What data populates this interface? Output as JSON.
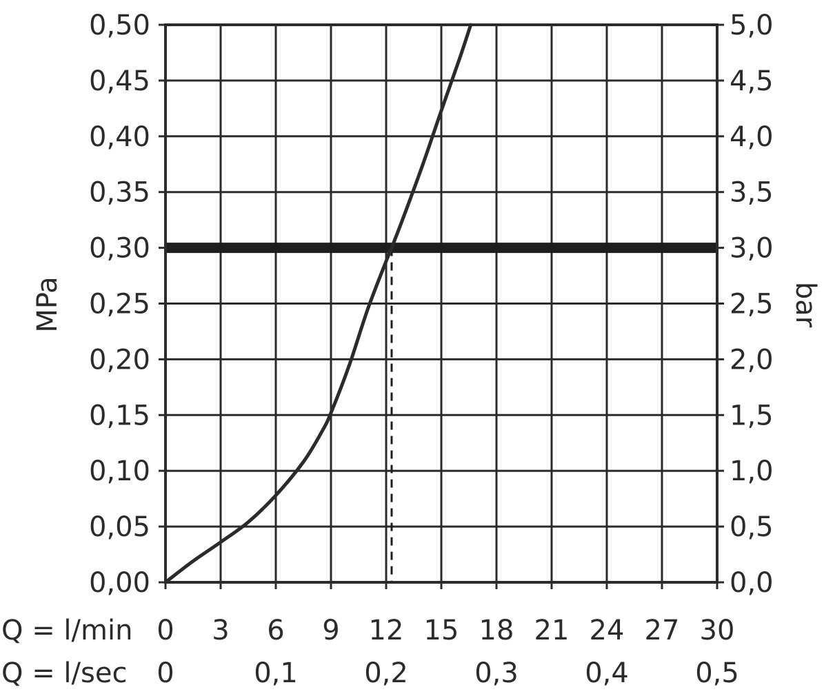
{
  "chart_data": {
    "type": "line",
    "title": "",
    "grid": true,
    "ylabel_left": "MPa",
    "ylabel_right": "bar",
    "xlim": [
      0,
      30
    ],
    "ylim": [
      0,
      0.5
    ],
    "ylim_right": [
      0,
      5
    ],
    "y_ticks_left": [
      "0,00",
      "0,05",
      "0,10",
      "0,15",
      "0,20",
      "0,25",
      "0,30",
      "0,35",
      "0,40",
      "0,45",
      "0,50"
    ],
    "y_ticks_right": [
      "0,0",
      "0,5",
      "1,0",
      "1,5",
      "2,0",
      "2,5",
      "3,0",
      "3,5",
      "4,0",
      "4,5",
      "5,0"
    ],
    "x_rows": [
      {
        "label": "Q = l/min",
        "ticks": [
          {
            "x": 0,
            "text": "0"
          },
          {
            "x": 3,
            "text": "3"
          },
          {
            "x": 6,
            "text": "6"
          },
          {
            "x": 9,
            "text": "9"
          },
          {
            "x": 12,
            "text": "12"
          },
          {
            "x": 15,
            "text": "15"
          },
          {
            "x": 18,
            "text": "18"
          },
          {
            "x": 21,
            "text": "21"
          },
          {
            "x": 24,
            "text": "24"
          },
          {
            "x": 27,
            "text": "27"
          },
          {
            "x": 30,
            "text": "30"
          }
        ]
      },
      {
        "label": "Q = l/sec",
        "ticks": [
          {
            "x": 0,
            "text": "0"
          },
          {
            "x": 6,
            "text": "0,1"
          },
          {
            "x": 12,
            "text": "0,2"
          },
          {
            "x": 18,
            "text": "0,3"
          },
          {
            "x": 24,
            "text": "0,4"
          },
          {
            "x": 30,
            "text": "0,5"
          }
        ]
      }
    ],
    "series": [
      {
        "x": [
          0,
          1.5,
          3,
          4.5,
          6,
          7.5,
          8.5,
          9,
          10,
          11,
          12,
          12.3,
          13,
          14,
          15,
          16,
          16.6
        ],
        "y": [
          0,
          0.019,
          0.036,
          0.054,
          0.078,
          0.108,
          0.135,
          0.152,
          0.195,
          0.245,
          0.288,
          0.3,
          0.33,
          0.375,
          0.423,
          0.47,
          0.5
        ]
      }
    ],
    "reference_line": {
      "y": 0.3
    },
    "reference_drop": {
      "x": 12.3,
      "y": 0.3
    },
    "colors": {
      "curve": "#2b2b2b",
      "grid": "#2b2b2b",
      "reference": "#1e1e1e"
    }
  }
}
